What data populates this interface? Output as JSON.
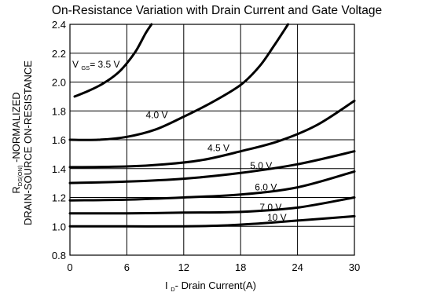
{
  "chart_data": {
    "type": "line",
    "title": "On-Resistance Variation with Drain Current and Gate Voltage",
    "xlabel": {
      "prefix": "I",
      "sub": "D",
      "suffix": "- Drain Current(A)"
    },
    "ylabel": {
      "line1_main": "R",
      "line1_sub": "DS(ON)",
      "line1_suffix": " -NORMALIZED",
      "line2": "DRAIN-SOURCE ON-RESISTANCE"
    },
    "xlim": [
      0,
      30
    ],
    "ylim": [
      0.8,
      2.4
    ],
    "xticks": [
      0,
      6,
      12,
      18,
      24,
      30
    ],
    "xtick_labels": [
      "0",
      "6",
      "12",
      "18",
      "24",
      "30"
    ],
    "yticks": [
      0.8,
      1.0,
      1.2,
      1.4,
      1.6,
      1.8,
      2.0,
      2.2,
      2.4
    ],
    "ytick_labels": [
      "0.8",
      "1.0",
      "1.2",
      "1.4",
      "1.6",
      "1.8",
      "2.0",
      "2.2",
      "2.4"
    ],
    "grid": true,
    "series": [
      {
        "name": "3.5 V",
        "label_prefix": "V",
        "label_sub": "GS",
        "label_suffix": "= 3.5 V",
        "x": [
          0.5,
          2,
          3.5,
          5,
          6,
          7,
          8,
          8.6
        ],
        "y": [
          1.9,
          1.94,
          1.99,
          2.06,
          2.13,
          2.22,
          2.34,
          2.4
        ]
      },
      {
        "name": "4.0 V",
        "x": [
          0,
          3,
          6,
          9,
          12,
          15,
          18,
          20,
          21.5,
          23
        ],
        "y": [
          1.6,
          1.6,
          1.62,
          1.67,
          1.76,
          1.86,
          1.98,
          2.11,
          2.25,
          2.4
        ]
      },
      {
        "name": "4.5 V",
        "x": [
          0,
          6,
          10,
          14,
          18,
          22,
          26,
          30
        ],
        "y": [
          1.41,
          1.415,
          1.43,
          1.46,
          1.52,
          1.59,
          1.7,
          1.87
        ]
      },
      {
        "name": "5.0 V",
        "x": [
          0,
          6,
          12,
          18,
          24,
          30
        ],
        "y": [
          1.3,
          1.31,
          1.33,
          1.37,
          1.43,
          1.52
        ]
      },
      {
        "name": "6.0 V",
        "x": [
          0,
          6,
          12,
          18,
          24,
          30
        ],
        "y": [
          1.18,
          1.185,
          1.2,
          1.22,
          1.27,
          1.38
        ]
      },
      {
        "name": "7.0 V",
        "x": [
          0,
          6,
          12,
          18,
          24,
          30
        ],
        "y": [
          1.09,
          1.09,
          1.095,
          1.1,
          1.13,
          1.2
        ]
      },
      {
        "name": "10 V",
        "x": [
          0,
          6,
          12,
          16,
          20,
          24,
          30
        ],
        "y": [
          1.0,
          1.0,
          1.0,
          1.005,
          1.02,
          1.04,
          1.07
        ]
      }
    ],
    "annotations": [
      {
        "text": "4.0 V",
        "x": 8,
        "y": 1.75
      },
      {
        "text": "4.5 V",
        "x": 14.5,
        "y": 1.52
      },
      {
        "text": "5.0 V",
        "x": 19,
        "y": 1.4
      },
      {
        "text": "6.0 V",
        "x": 19.5,
        "y": 1.25
      },
      {
        "text": "7.0 V",
        "x": 20,
        "y": 1.11
      },
      {
        "text": "10 V",
        "x": 20.8,
        "y": 1.04
      }
    ]
  }
}
